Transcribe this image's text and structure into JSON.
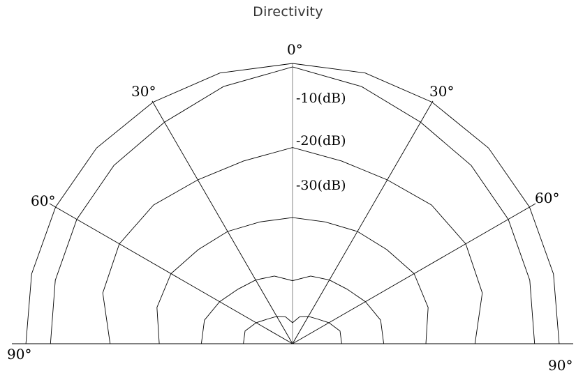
{
  "chart_data": {
    "type": "polar",
    "title": "Directivity",
    "angle_labels": {
      "center": "0°",
      "upper_left": "30°",
      "upper_right": "30°",
      "mid_left": "60°",
      "mid_right": "60°",
      "lower_left": "90°",
      "lower_right": "90°"
    },
    "radial_axis": {
      "unit": "dB",
      "range": [
        -40,
        0
      ],
      "levels": [
        0,
        -10,
        -20,
        -30
      ],
      "level_labels": [
        "-10(dB)",
        "-20(dB)",
        "-30(dB)"
      ]
    },
    "spokes_deg": [
      -90,
      -60,
      -30,
      0,
      30,
      60,
      90
    ],
    "series": [
      {
        "angles_deg": [
          -90,
          -75,
          -60,
          -45,
          -30,
          -15,
          0,
          15,
          30,
          45,
          60,
          75,
          90
        ],
        "values_db": [
          -2,
          -1.5,
          -1,
          -0.5,
          -0.2,
          0,
          0,
          0,
          -0.2,
          -0.5,
          -1,
          -1.5,
          -2
        ]
      },
      {
        "angles_deg": [
          -90,
          -75,
          -60,
          -45,
          -30,
          -15,
          0,
          15,
          30,
          45,
          60,
          75,
          90
        ],
        "values_db": [
          -5.5,
          -5,
          -4.5,
          -4,
          -3.5,
          -2,
          -0.5,
          -2,
          -3.5,
          -4,
          -4.5,
          -5,
          -5.5
        ]
      },
      {
        "angles_deg": [
          -90,
          -75,
          -60,
          -45,
          -30,
          -15,
          0,
          15,
          30,
          45,
          60,
          75,
          90
        ],
        "values_db": [
          -14,
          -12,
          -11.5,
          -12,
          -13,
          -13,
          -12,
          -13,
          -13,
          -12,
          -11.5,
          -12,
          -14
        ]
      },
      {
        "angles_deg": [
          -90,
          -75,
          -60,
          -45,
          -30,
          -15,
          0,
          15,
          30,
          45,
          60,
          75,
          90
        ],
        "values_db": [
          -21,
          -20,
          -20,
          -21,
          -21.5,
          -22,
          -22,
          -22,
          -21.5,
          -21,
          -20,
          -20,
          -21
        ]
      },
      {
        "angles_deg": [
          -90,
          -75,
          -60,
          -45,
          -30,
          -15,
          0,
          15,
          30,
          45,
          60,
          75,
          90
        ],
        "values_db": [
          -27,
          -27,
          -28,
          -29,
          -29.5,
          -30,
          -31,
          -30,
          -29.5,
          -29,
          -28,
          -27,
          -27
        ]
      },
      {
        "angles_deg": [
          -90,
          -75,
          -60,
          -45,
          -30,
          -15,
          0,
          15,
          30,
          45,
          60,
          75,
          90
        ],
        "values_db": [
          -33,
          -33,
          -34,
          -35,
          -35.5,
          -36,
          -37,
          -36,
          -35.5,
          -35,
          -34,
          -33,
          -33
        ]
      }
    ],
    "grid": true
  }
}
